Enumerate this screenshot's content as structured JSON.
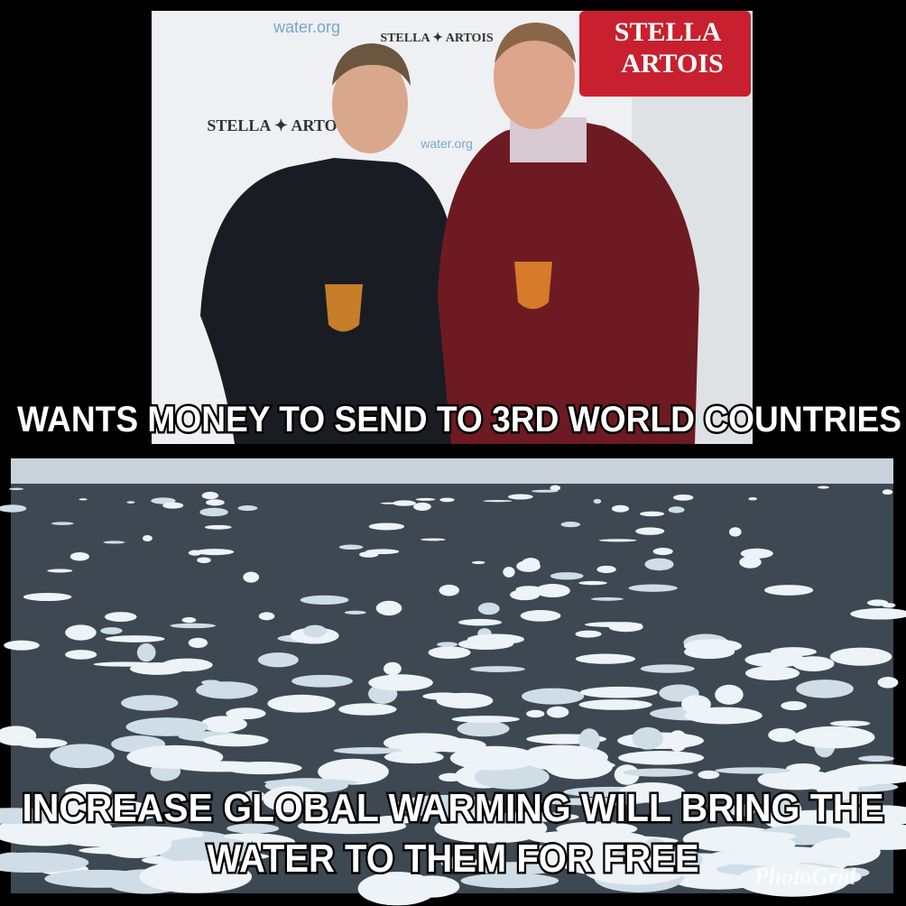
{
  "top_panel": {
    "signs": {
      "water_org": "water.org",
      "small_logo": "STELLA ✦ ARTOIS",
      "big_logo": [
        "STELLA",
        "ARTOIS"
      ]
    },
    "caption": "WANTS MONEY TO SEND TO 3RD WORLD COUNTRIES"
  },
  "bottom_panel": {
    "caption_lines": [
      "INCREASE GLOBAL WARMING WILL BRING THE",
      "WATER TO THEM FOR FREE"
    ],
    "watermark": "PhotoGrid"
  }
}
